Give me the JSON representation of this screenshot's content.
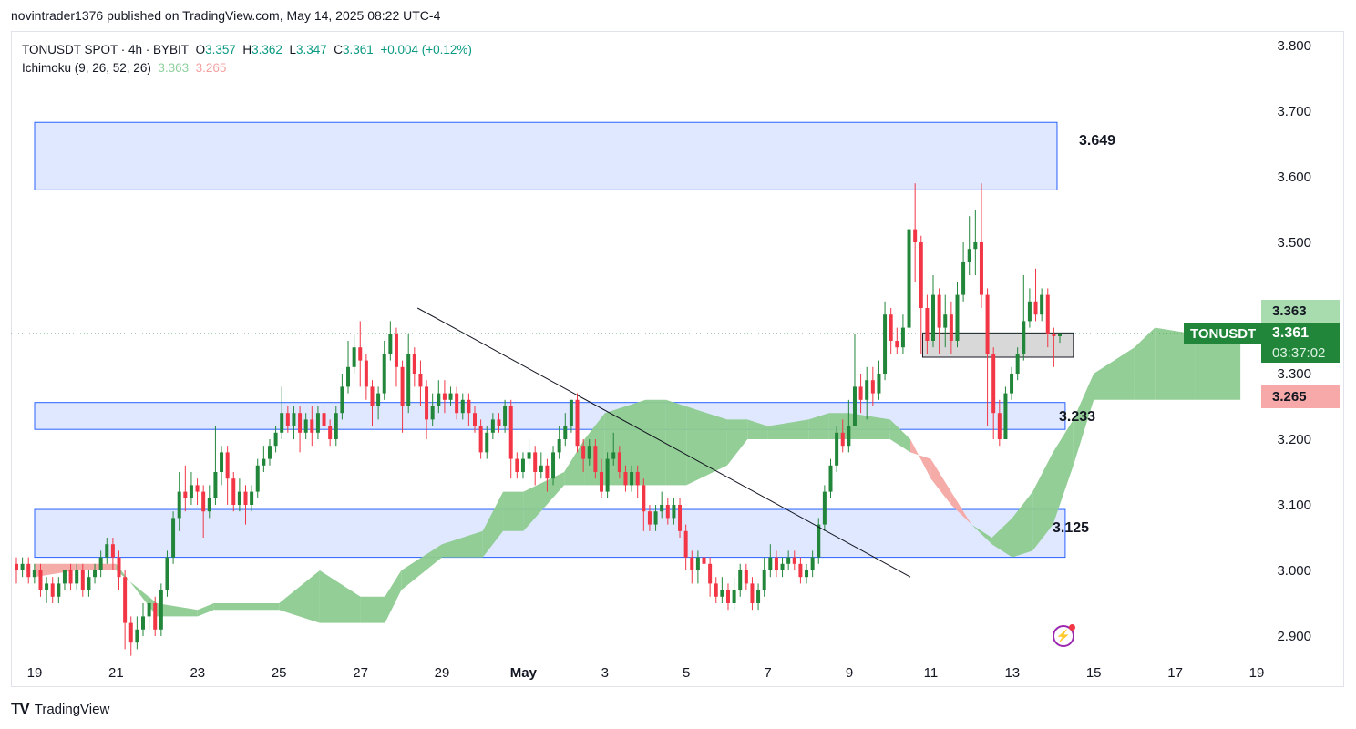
{
  "header": {
    "text": "novintrader1376 published on TradingView.com, May 14, 2025 08:22 UTC-4"
  },
  "legend": {
    "symbol": "TONUSDT SPOT · 4h · BYBIT",
    "o_label": "O",
    "o_value": "3.357",
    "h_label": "H",
    "h_value": "3.362",
    "l_label": "L",
    "l_value": "3.347",
    "c_label": "C",
    "c_value": "3.361",
    "change": "+0.004 (+0.12%)",
    "indicator": "Ichimoku (9, 26, 52, 26)",
    "ich_a": "3.363",
    "ich_b": "3.265"
  },
  "badges": {
    "symbol": "TONUSDT",
    "last_price": "3.361",
    "countdown": "03:37:02",
    "ich_a_price": "3.363",
    "ich_b_price": "3.265"
  },
  "annotations": {
    "top_zone_label": "3.649",
    "mid_zone_label": "3.233",
    "low_zone_label": "3.125"
  },
  "logo": {
    "text": "TradingView"
  },
  "colors": {
    "up": "#22863a",
    "down": "#f23645",
    "zone_fill": "#d6e0ff",
    "zone_stroke": "#2962ff",
    "cloud_bull": "#8ccb8f",
    "cloud_bear": "#f4a7a3",
    "badge_green": "#22863a"
  },
  "icons": {
    "alert": "bolt-icon"
  },
  "chart_data": {
    "type": "candlestick",
    "symbol": "TONUSDT",
    "timeframe": "4h",
    "y_axis": {
      "ticks": [
        "3.800",
        "3.700",
        "3.600",
        "3.500",
        "3.300",
        "3.200",
        "3.100",
        "3.000",
        "2.900"
      ],
      "range": [
        2.87,
        3.82
      ]
    },
    "x_axis": {
      "ticks": [
        "19",
        "21",
        "23",
        "25",
        "27",
        "29",
        "May",
        "3",
        "5",
        "7",
        "9",
        "11",
        "13",
        "15",
        "17",
        "19"
      ]
    },
    "zones": [
      {
        "low": 3.58,
        "high": 3.683,
        "start_day": 0,
        "end_day": 25.1,
        "label": "3.649"
      },
      {
        "low": 3.215,
        "high": 3.256,
        "start_day": 0,
        "end_day": 25.3,
        "label": "3.233"
      },
      {
        "low": 3.02,
        "high": 3.093,
        "start_day": 0,
        "end_day": 25.3,
        "label": "3.125"
      },
      {
        "low": 3.325,
        "high": 3.362,
        "start_day": 21.8,
        "end_day": 25.5
      }
    ],
    "trendline": {
      "start": {
        "day": 9.4,
        "price": 3.4
      },
      "end": {
        "day": 21.5,
        "price": 2.99
      }
    },
    "current_price": 3.361,
    "ichimoku": {
      "span_a": 3.363,
      "span_b": 3.265
    },
    "cloud": {
      "days": [
        0,
        1,
        2,
        3,
        4,
        4.4,
        5,
        6,
        7,
        8,
        8.6,
        9,
        10,
        11,
        11.5,
        12,
        13,
        13.5,
        14,
        15,
        15.5,
        16,
        17,
        17.5,
        18,
        19,
        19.5,
        20,
        21,
        21.5,
        22,
        22.5,
        23,
        23.5,
        24,
        24.5,
        25,
        25.5,
        26,
        27,
        27.5,
        28.5,
        29.6
      ],
      "span_a": [
        2.99,
        3.0,
        3.0,
        2.95,
        2.94,
        2.95,
        2.95,
        2.95,
        3.0,
        2.96,
        2.96,
        3.0,
        3.04,
        3.06,
        3.12,
        3.12,
        3.15,
        3.2,
        3.24,
        3.26,
        3.26,
        3.25,
        3.23,
        3.23,
        3.22,
        3.23,
        3.24,
        3.24,
        3.23,
        3.2,
        3.14,
        3.1,
        3.07,
        3.05,
        3.08,
        3.12,
        3.18,
        3.23,
        3.3,
        3.34,
        3.37,
        3.36,
        3.36
      ],
      "span_b": [
        3.01,
        3.01,
        3.01,
        2.93,
        2.93,
        2.94,
        2.94,
        2.94,
        2.92,
        2.92,
        2.92,
        2.97,
        3.02,
        3.02,
        3.06,
        3.06,
        3.13,
        3.13,
        3.13,
        3.13,
        3.13,
        3.13,
        3.16,
        3.2,
        3.2,
        3.2,
        3.2,
        3.2,
        3.2,
        3.18,
        3.17,
        3.12,
        3.07,
        3.04,
        3.02,
        3.03,
        3.07,
        3.16,
        3.26,
        3.26,
        3.26,
        3.26,
        3.26
      ]
    },
    "candles": [
      [
        3.01,
        3.0,
        3.02,
        2.98
      ],
      [
        3.0,
        3.01,
        3.02,
        2.99
      ],
      [
        3.01,
        2.99,
        3.02,
        2.98
      ],
      [
        2.99,
        3.0,
        3.01,
        2.98
      ],
      [
        3.0,
        2.97,
        3.01,
        2.96
      ],
      [
        2.97,
        2.98,
        2.99,
        2.95
      ],
      [
        2.98,
        2.96,
        2.99,
        2.95
      ],
      [
        2.96,
        2.98,
        2.99,
        2.95
      ],
      [
        2.98,
        3.0,
        3.0,
        2.97
      ],
      [
        3.0,
        2.98,
        3.01,
        2.97
      ],
      [
        2.98,
        3.0,
        3.01,
        2.97
      ],
      [
        3.0,
        2.97,
        3.01,
        2.96
      ],
      [
        2.97,
        2.99,
        3.0,
        2.96
      ],
      [
        2.99,
        3.0,
        3.01,
        2.98
      ],
      [
        3.0,
        3.02,
        3.03,
        2.99
      ],
      [
        3.02,
        3.04,
        3.05,
        3.01
      ],
      [
        3.04,
        3.02,
        3.05,
        3.0
      ],
      [
        3.02,
        2.99,
        3.03,
        2.97
      ],
      [
        2.99,
        2.92,
        3.0,
        2.88
      ],
      [
        2.92,
        2.89,
        2.93,
        2.87
      ],
      [
        2.89,
        2.91,
        2.93,
        2.88
      ],
      [
        2.91,
        2.93,
        2.95,
        2.9
      ],
      [
        2.93,
        2.95,
        2.96,
        2.91
      ],
      [
        2.95,
        2.91,
        2.96,
        2.9
      ],
      [
        2.91,
        2.97,
        2.98,
        2.9
      ],
      [
        2.97,
        3.02,
        3.03,
        2.96
      ],
      [
        3.02,
        3.08,
        3.09,
        3.01
      ],
      [
        3.08,
        3.12,
        3.15,
        3.06
      ],
      [
        3.12,
        3.11,
        3.16,
        3.09
      ],
      [
        3.11,
        3.13,
        3.15,
        3.1
      ],
      [
        3.13,
        3.12,
        3.14,
        3.1
      ],
      [
        3.12,
        3.09,
        3.13,
        3.05
      ],
      [
        3.09,
        3.11,
        3.13,
        3.08
      ],
      [
        3.11,
        3.15,
        3.22,
        3.1
      ],
      [
        3.15,
        3.18,
        3.19,
        3.13
      ],
      [
        3.18,
        3.14,
        3.19,
        3.1
      ],
      [
        3.14,
        3.1,
        3.15,
        3.09
      ],
      [
        3.1,
        3.12,
        3.14,
        3.09
      ],
      [
        3.12,
        3.1,
        3.13,
        3.07
      ],
      [
        3.1,
        3.12,
        3.13,
        3.09
      ],
      [
        3.12,
        3.16,
        3.17,
        3.11
      ],
      [
        3.16,
        3.17,
        3.19,
        3.15
      ],
      [
        3.17,
        3.19,
        3.2,
        3.16
      ],
      [
        3.19,
        3.21,
        3.22,
        3.18
      ],
      [
        3.21,
        3.24,
        3.28,
        3.2
      ],
      [
        3.24,
        3.22,
        3.25,
        3.21
      ],
      [
        3.22,
        3.24,
        3.25,
        3.2
      ],
      [
        3.24,
        3.21,
        3.25,
        3.18
      ],
      [
        3.21,
        3.23,
        3.24,
        3.2
      ],
      [
        3.23,
        3.21,
        3.25,
        3.19
      ],
      [
        3.21,
        3.24,
        3.25,
        3.2
      ],
      [
        3.24,
        3.22,
        3.25,
        3.21
      ],
      [
        3.22,
        3.2,
        3.23,
        3.19
      ],
      [
        3.2,
        3.24,
        3.25,
        3.19
      ],
      [
        3.24,
        3.28,
        3.3,
        3.23
      ],
      [
        3.28,
        3.31,
        3.35,
        3.27
      ],
      [
        3.31,
        3.34,
        3.36,
        3.3
      ],
      [
        3.34,
        3.32,
        3.38,
        3.28
      ],
      [
        3.32,
        3.28,
        3.33,
        3.26
      ],
      [
        3.28,
        3.25,
        3.29,
        3.22
      ],
      [
        3.25,
        3.27,
        3.28,
        3.23
      ],
      [
        3.27,
        3.33,
        3.35,
        3.26
      ],
      [
        3.33,
        3.36,
        3.38,
        3.32
      ],
      [
        3.36,
        3.31,
        3.37,
        3.28
      ],
      [
        3.31,
        3.25,
        3.32,
        3.21
      ],
      [
        3.25,
        3.33,
        3.36,
        3.24
      ],
      [
        3.33,
        3.3,
        3.34,
        3.28
      ],
      [
        3.3,
        3.28,
        3.32,
        3.25
      ],
      [
        3.28,
        3.23,
        3.29,
        3.2
      ],
      [
        3.23,
        3.25,
        3.27,
        3.22
      ],
      [
        3.25,
        3.27,
        3.29,
        3.24
      ],
      [
        3.27,
        3.26,
        3.29,
        3.24
      ],
      [
        3.26,
        3.27,
        3.28,
        3.25
      ],
      [
        3.27,
        3.24,
        3.28,
        3.23
      ],
      [
        3.24,
        3.26,
        3.27,
        3.23
      ],
      [
        3.26,
        3.24,
        3.27,
        3.22
      ],
      [
        3.24,
        3.22,
        3.25,
        3.21
      ],
      [
        3.22,
        3.18,
        3.23,
        3.17
      ],
      [
        3.18,
        3.21,
        3.22,
        3.17
      ],
      [
        3.21,
        3.23,
        3.24,
        3.2
      ],
      [
        3.23,
        3.22,
        3.24,
        3.21
      ],
      [
        3.22,
        3.25,
        3.26,
        3.21
      ],
      [
        3.25,
        3.17,
        3.26,
        3.14
      ],
      [
        3.17,
        3.15,
        3.18,
        3.14
      ],
      [
        3.15,
        3.17,
        3.18,
        3.14
      ],
      [
        3.17,
        3.18,
        3.2,
        3.16
      ],
      [
        3.18,
        3.15,
        3.19,
        3.13
      ],
      [
        3.15,
        3.16,
        3.18,
        3.14
      ],
      [
        3.16,
        3.14,
        3.17,
        3.12
      ],
      [
        3.14,
        3.18,
        3.19,
        3.13
      ],
      [
        3.18,
        3.2,
        3.22,
        3.17
      ],
      [
        3.2,
        3.22,
        3.24,
        3.19
      ],
      [
        3.22,
        3.26,
        3.26,
        3.21
      ],
      [
        3.26,
        3.19,
        3.27,
        3.18
      ],
      [
        3.19,
        3.17,
        3.2,
        3.15
      ],
      [
        3.17,
        3.19,
        3.2,
        3.16
      ],
      [
        3.19,
        3.15,
        3.2,
        3.14
      ],
      [
        3.15,
        3.12,
        3.17,
        3.11
      ],
      [
        3.12,
        3.17,
        3.18,
        3.11
      ],
      [
        3.17,
        3.18,
        3.21,
        3.16
      ],
      [
        3.18,
        3.15,
        3.19,
        3.14
      ],
      [
        3.15,
        3.13,
        3.16,
        3.12
      ],
      [
        3.13,
        3.15,
        3.16,
        3.12
      ],
      [
        3.15,
        3.13,
        3.16,
        3.11
      ],
      [
        3.13,
        3.09,
        3.14,
        3.06
      ],
      [
        3.09,
        3.07,
        3.1,
        3.06
      ],
      [
        3.07,
        3.09,
        3.1,
        3.06
      ],
      [
        3.09,
        3.1,
        3.12,
        3.08
      ],
      [
        3.1,
        3.08,
        3.11,
        3.07
      ],
      [
        3.08,
        3.1,
        3.11,
        3.07
      ],
      [
        3.1,
        3.06,
        3.11,
        3.05
      ],
      [
        3.06,
        3.02,
        3.07,
        3.0
      ],
      [
        3.02,
        3.0,
        3.03,
        2.98
      ],
      [
        3.0,
        3.02,
        3.03,
        2.98
      ],
      [
        3.02,
        3.01,
        3.03,
        2.99
      ],
      [
        3.01,
        2.98,
        3.02,
        2.96
      ],
      [
        2.98,
        2.96,
        2.99,
        2.95
      ],
      [
        2.96,
        2.97,
        2.99,
        2.95
      ],
      [
        2.97,
        2.95,
        2.98,
        2.94
      ],
      [
        2.95,
        2.97,
        2.99,
        2.94
      ],
      [
        2.97,
        3.0,
        3.01,
        2.96
      ],
      [
        3.0,
        2.98,
        3.01,
        2.97
      ],
      [
        2.98,
        2.95,
        2.99,
        2.94
      ],
      [
        2.95,
        2.97,
        2.98,
        2.94
      ],
      [
        2.97,
        3.0,
        3.02,
        2.96
      ],
      [
        3.0,
        3.02,
        3.04,
        2.99
      ],
      [
        3.02,
        3.0,
        3.03,
        2.99
      ],
      [
        3.0,
        3.01,
        3.02,
        2.99
      ],
      [
        3.01,
        3.02,
        3.03,
        3.0
      ],
      [
        3.02,
        3.01,
        3.03,
        3.0
      ],
      [
        3.01,
        2.99,
        3.02,
        2.98
      ],
      [
        2.99,
        3.0,
        3.01,
        2.98
      ],
      [
        3.0,
        3.02,
        3.03,
        2.99
      ],
      [
        3.02,
        3.07,
        3.08,
        3.01
      ],
      [
        3.07,
        3.12,
        3.13,
        3.06
      ],
      [
        3.12,
        3.16,
        3.17,
        3.11
      ],
      [
        3.16,
        3.21,
        3.22,
        3.15
      ],
      [
        3.21,
        3.19,
        3.23,
        3.18
      ],
      [
        3.19,
        3.22,
        3.26,
        3.18
      ],
      [
        3.22,
        3.28,
        3.36,
        3.22
      ],
      [
        3.28,
        3.26,
        3.3,
        3.24
      ],
      [
        3.26,
        3.29,
        3.31,
        3.23
      ],
      [
        3.29,
        3.27,
        3.31,
        3.25
      ],
      [
        3.27,
        3.3,
        3.32,
        3.26
      ],
      [
        3.3,
        3.39,
        3.41,
        3.29
      ],
      [
        3.39,
        3.35,
        3.4,
        3.33
      ],
      [
        3.35,
        3.34,
        3.37,
        3.33
      ],
      [
        3.34,
        3.37,
        3.39,
        3.33
      ],
      [
        3.37,
        3.52,
        3.53,
        3.36
      ],
      [
        3.52,
        3.5,
        3.59,
        3.44
      ],
      [
        3.5,
        3.4,
        3.51,
        3.33
      ],
      [
        3.4,
        3.35,
        3.42,
        3.33
      ],
      [
        3.35,
        3.42,
        3.45,
        3.34
      ],
      [
        3.42,
        3.37,
        3.43,
        3.33
      ],
      [
        3.37,
        3.39,
        3.42,
        3.34
      ],
      [
        3.39,
        3.35,
        3.41,
        3.33
      ],
      [
        3.35,
        3.42,
        3.44,
        3.34
      ],
      [
        3.42,
        3.47,
        3.5,
        3.41
      ],
      [
        3.47,
        3.49,
        3.54,
        3.45
      ],
      [
        3.49,
        3.5,
        3.55,
        3.45
      ],
      [
        3.5,
        3.42,
        3.59,
        3.4
      ],
      [
        3.42,
        3.33,
        3.43,
        3.22
      ],
      [
        3.33,
        3.24,
        3.34,
        3.2
      ],
      [
        3.24,
        3.2,
        3.26,
        3.19
      ],
      [
        3.2,
        3.27,
        3.28,
        3.2
      ],
      [
        3.27,
        3.3,
        3.31,
        3.26
      ],
      [
        3.3,
        3.33,
        3.34,
        3.29
      ],
      [
        3.33,
        3.38,
        3.45,
        3.32
      ],
      [
        3.38,
        3.41,
        3.43,
        3.37
      ],
      [
        3.41,
        3.39,
        3.46,
        3.38
      ],
      [
        3.39,
        3.42,
        3.43,
        3.38
      ],
      [
        3.42,
        3.36,
        3.43,
        3.34
      ],
      [
        3.36,
        3.357,
        3.37,
        3.31
      ],
      [
        3.357,
        3.361,
        3.362,
        3.347
      ]
    ]
  }
}
